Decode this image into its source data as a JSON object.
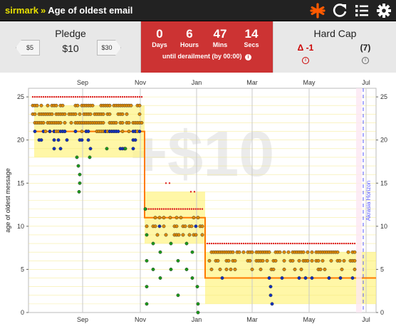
{
  "header": {
    "user": "sirmark",
    "separator": "»",
    "goal_title": "Age of oldest email",
    "icons": [
      "asterisk-icon",
      "refresh-icon",
      "list-icon",
      "gear-icon"
    ]
  },
  "pledge": {
    "title": "Pledge",
    "amount": "$10",
    "lower_button": "$5",
    "higher_button": "$30"
  },
  "countdown": {
    "cells": [
      {
        "num": "0",
        "unit": "Days"
      },
      {
        "num": "6",
        "unit": "Hours"
      },
      {
        "num": "47",
        "unit": "Mins"
      },
      {
        "num": "14",
        "unit": "Secs"
      }
    ],
    "footer": "until derailment (by 00:00)",
    "info": "i",
    "color": "#cc3333"
  },
  "hardcap": {
    "title": "Hard Cap",
    "delta": "Δ -1",
    "count": "(7)",
    "info": "i"
  },
  "chart_data": {
    "type": "scatter",
    "ylabel": "age of oldest message",
    "watermark": "+$10",
    "horizon_label": "Akrasia Horizon",
    "x_ticks_top": [
      "Sep",
      "Nov",
      "Jan",
      "Mar",
      "May",
      "Jul"
    ],
    "x_ticks_bottom": [
      "Sep",
      "Nov",
      "Jan",
      "Mar",
      "May",
      "Jul"
    ],
    "y_ticks": [
      0,
      5,
      10,
      15,
      20,
      25
    ],
    "ylim": [
      0,
      26
    ],
    "colors": {
      "on_road": "#e08a00",
      "blue": "#1030c0",
      "green": "#1a9a1a",
      "red": "#dd2222",
      "road": "#fff48a",
      "centerline": "#ff7a00",
      "horizon": "#5a5aff"
    }
  }
}
